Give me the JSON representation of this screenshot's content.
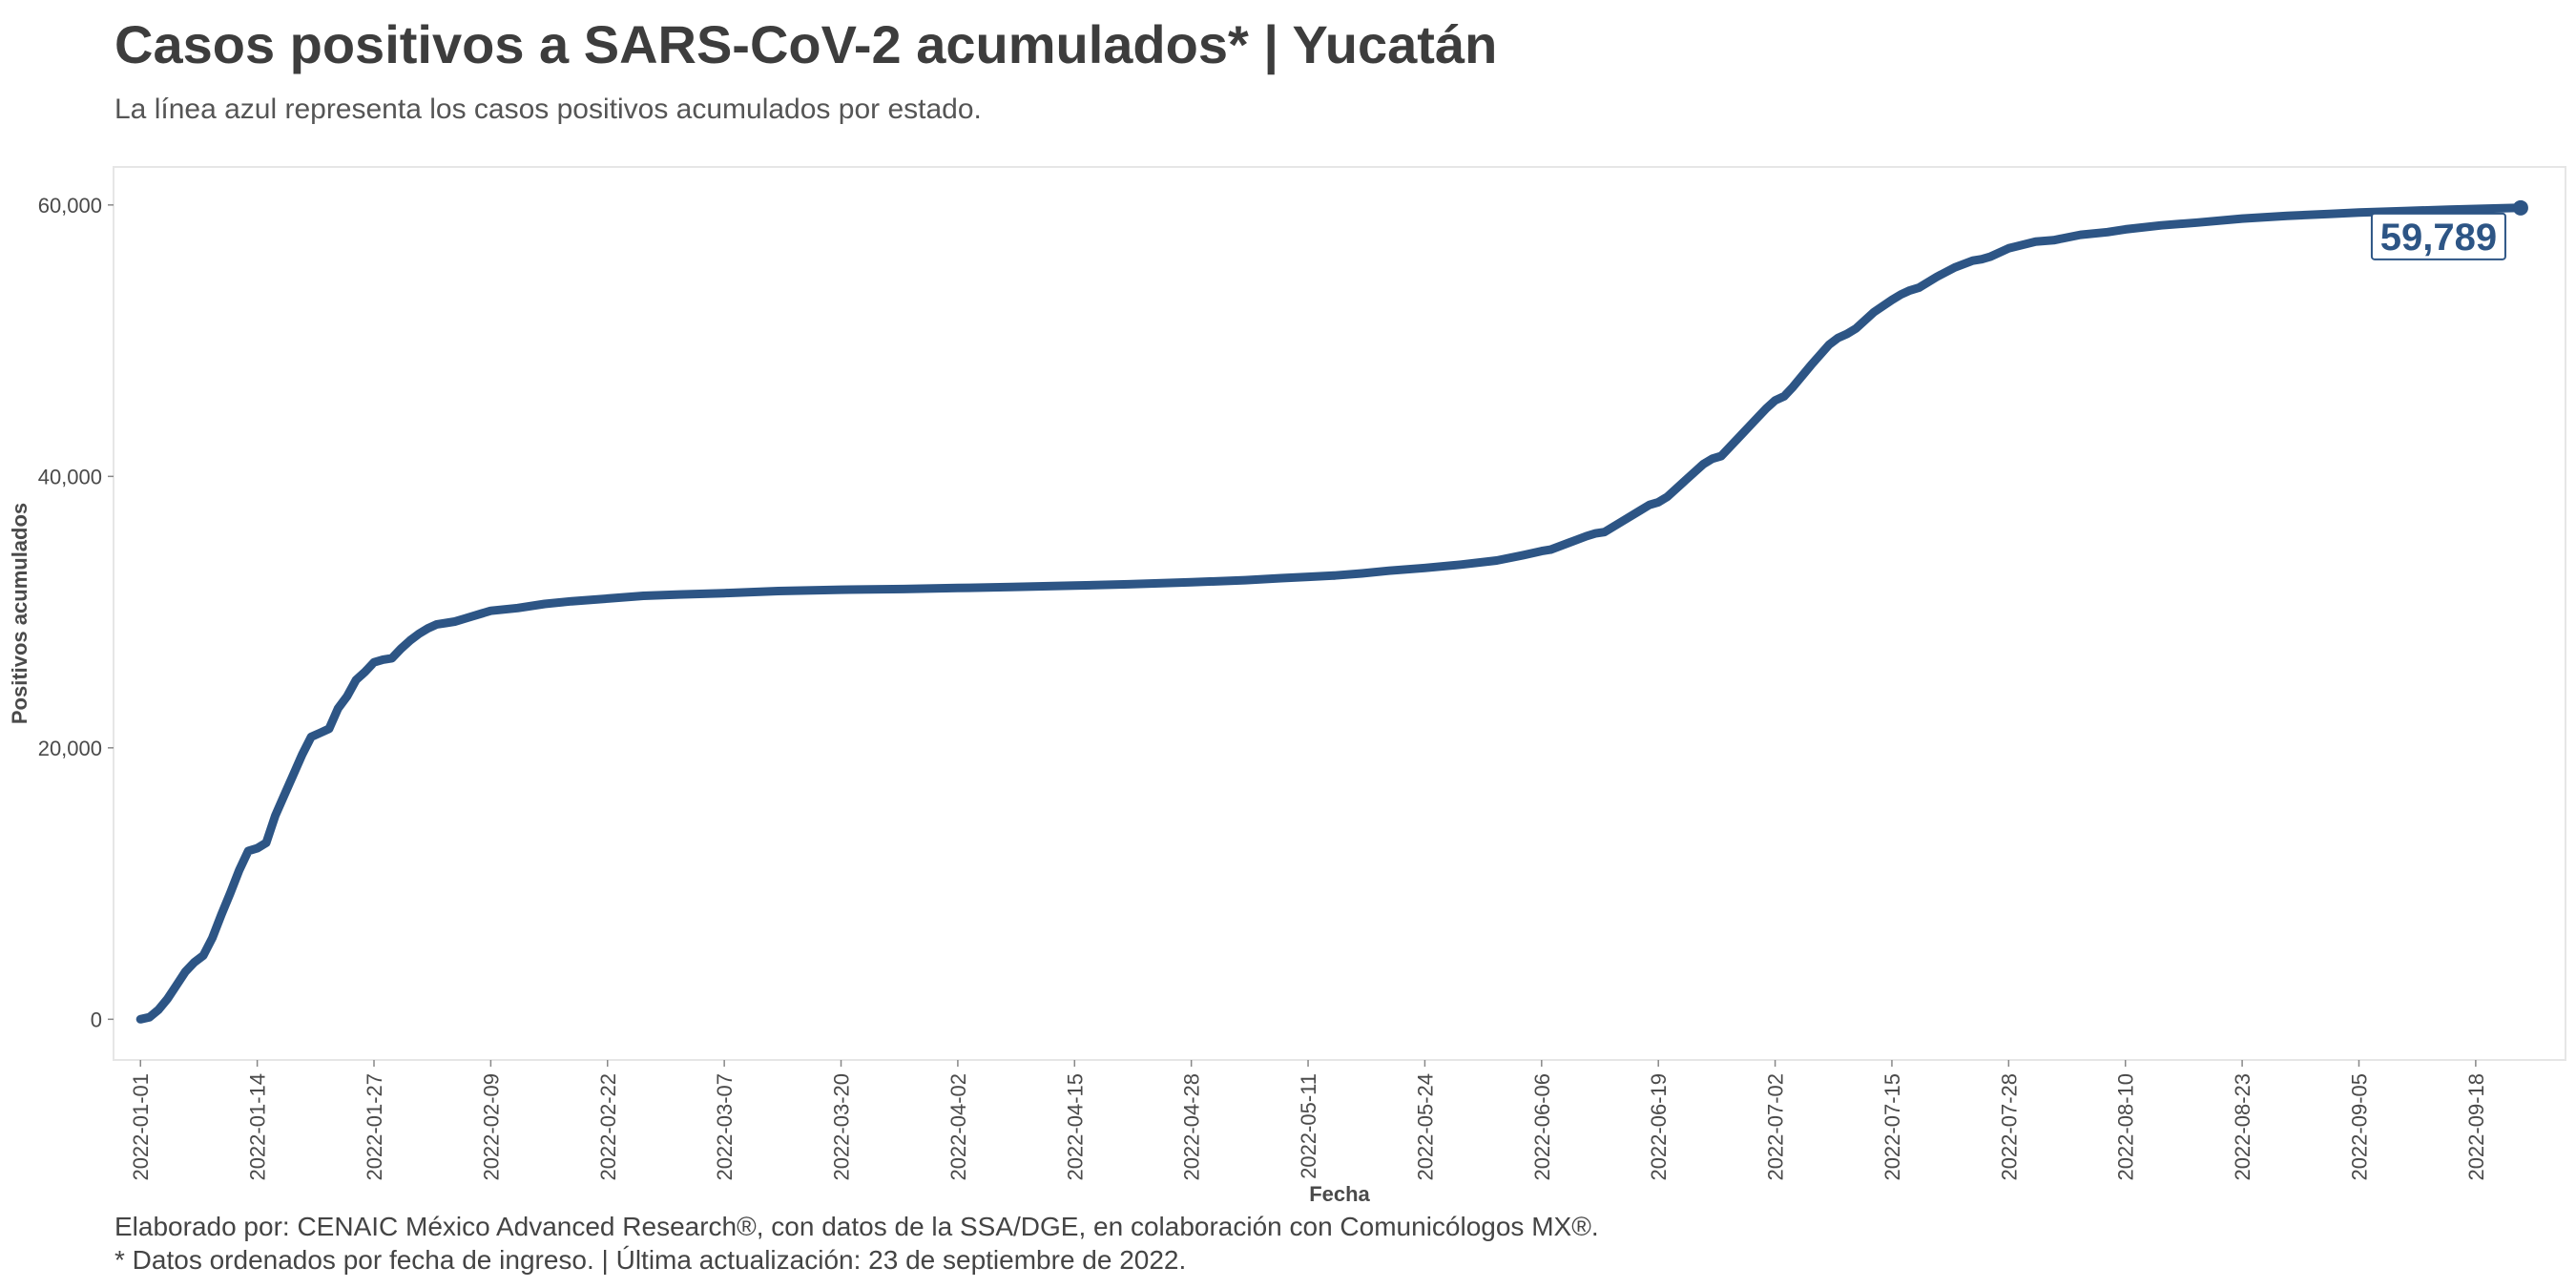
{
  "header": {
    "title": "Casos positivos a SARS-CoV-2 acumulados* | Yucatán",
    "subtitle": "La línea azul representa los casos positivos acumulados por estado."
  },
  "footer": {
    "credit": "Elaborado por: CENAIC México Advanced Research®, con datos de la SSA/DGE, en colaboración con Comunicólogos MX®.",
    "note": "* Datos ordenados por fecha de ingreso. | Última actualización: 23 de septiembre de 2022."
  },
  "colors": {
    "line": "#2d5585",
    "panel_border": "#e6e6e6",
    "text": "#3d3d3d"
  },
  "chart_data": {
    "type": "line",
    "title": "Casos positivos a SARS-CoV-2 acumulados* | Yucatán",
    "xlabel": "Fecha",
    "ylabel": "Positivos acumulados",
    "ylim": [
      -3000,
      62800
    ],
    "xlim": [
      "2021-12-29",
      "2022-09-28"
    ],
    "grid": false,
    "y_ticks": [
      {
        "value": 0,
        "label": "0"
      },
      {
        "value": 20000,
        "label": "20,000"
      },
      {
        "value": 40000,
        "label": "40,000"
      },
      {
        "value": 60000,
        "label": "60,000"
      }
    ],
    "x_ticks": [
      "2022-01-01",
      "2022-01-14",
      "2022-01-27",
      "2022-02-09",
      "2022-02-22",
      "2022-03-07",
      "2022-03-20",
      "2022-04-02",
      "2022-04-15",
      "2022-04-28",
      "2022-05-11",
      "2022-05-24",
      "2022-06-06",
      "2022-06-19",
      "2022-07-02",
      "2022-07-15",
      "2022-07-28",
      "2022-08-10",
      "2022-08-23",
      "2022-09-05",
      "2022-09-18"
    ],
    "end_label": "59,789",
    "series": [
      {
        "values": [
          [
            "2022-01-01",
            0
          ],
          [
            "2022-01-02",
            150
          ],
          [
            "2022-01-03",
            700
          ],
          [
            "2022-01-04",
            1500
          ],
          [
            "2022-01-05",
            2500
          ],
          [
            "2022-01-06",
            3500
          ],
          [
            "2022-01-07",
            4200
          ],
          [
            "2022-01-08",
            4700
          ],
          [
            "2022-01-09",
            6000
          ],
          [
            "2022-01-10",
            7700
          ],
          [
            "2022-01-11",
            9300
          ],
          [
            "2022-01-12",
            11000
          ],
          [
            "2022-01-13",
            12400
          ],
          [
            "2022-01-14",
            12600
          ],
          [
            "2022-01-15",
            13000
          ],
          [
            "2022-01-16",
            15000
          ],
          [
            "2022-01-17",
            16500
          ],
          [
            "2022-01-18",
            18000
          ],
          [
            "2022-01-19",
            19500
          ],
          [
            "2022-01-20",
            20800
          ],
          [
            "2022-01-21",
            21100
          ],
          [
            "2022-01-22",
            21400
          ],
          [
            "2022-01-23",
            22900
          ],
          [
            "2022-01-24",
            23800
          ],
          [
            "2022-01-25",
            25000
          ],
          [
            "2022-01-26",
            25600
          ],
          [
            "2022-01-27",
            26300
          ],
          [
            "2022-01-28",
            26500
          ],
          [
            "2022-01-29",
            26600
          ],
          [
            "2022-01-30",
            27300
          ],
          [
            "2022-01-31",
            27900
          ],
          [
            "2022-02-01",
            28400
          ],
          [
            "2022-02-02",
            28800
          ],
          [
            "2022-02-03",
            29100
          ],
          [
            "2022-02-04",
            29200
          ],
          [
            "2022-02-05",
            29300
          ],
          [
            "2022-02-06",
            29500
          ],
          [
            "2022-02-07",
            29700
          ],
          [
            "2022-02-08",
            29900
          ],
          [
            "2022-02-09",
            30100
          ],
          [
            "2022-02-12",
            30300
          ],
          [
            "2022-02-15",
            30600
          ],
          [
            "2022-02-18",
            30800
          ],
          [
            "2022-02-22",
            31000
          ],
          [
            "2022-02-26",
            31200
          ],
          [
            "2022-03-02",
            31300
          ],
          [
            "2022-03-07",
            31400
          ],
          [
            "2022-03-13",
            31550
          ],
          [
            "2022-03-20",
            31650
          ],
          [
            "2022-03-27",
            31700
          ],
          [
            "2022-04-02",
            31780
          ],
          [
            "2022-04-08",
            31850
          ],
          [
            "2022-04-15",
            31950
          ],
          [
            "2022-04-21",
            32050
          ],
          [
            "2022-04-28",
            32200
          ],
          [
            "2022-05-04",
            32350
          ],
          [
            "2022-05-08",
            32500
          ],
          [
            "2022-05-11",
            32600
          ],
          [
            "2022-05-14",
            32700
          ],
          [
            "2022-05-17",
            32850
          ],
          [
            "2022-05-20",
            33050
          ],
          [
            "2022-05-24",
            33250
          ],
          [
            "2022-05-28",
            33500
          ],
          [
            "2022-06-01",
            33800
          ],
          [
            "2022-06-04",
            34200
          ],
          [
            "2022-06-06",
            34500
          ],
          [
            "2022-06-07",
            34600
          ],
          [
            "2022-06-09",
            35100
          ],
          [
            "2022-06-11",
            35600
          ],
          [
            "2022-06-12",
            35800
          ],
          [
            "2022-06-13",
            35900
          ],
          [
            "2022-06-15",
            36700
          ],
          [
            "2022-06-17",
            37500
          ],
          [
            "2022-06-18",
            37900
          ],
          [
            "2022-06-19",
            38100
          ],
          [
            "2022-06-20",
            38500
          ],
          [
            "2022-06-22",
            39700
          ],
          [
            "2022-06-24",
            40900
          ],
          [
            "2022-06-25",
            41300
          ],
          [
            "2022-06-26",
            41500
          ],
          [
            "2022-06-28",
            42900
          ],
          [
            "2022-06-30",
            44300
          ],
          [
            "2022-07-01",
            45000
          ],
          [
            "2022-07-02",
            45600
          ],
          [
            "2022-07-03",
            45900
          ],
          [
            "2022-07-04",
            46600
          ],
          [
            "2022-07-06",
            48200
          ],
          [
            "2022-07-08",
            49700
          ],
          [
            "2022-07-09",
            50200
          ],
          [
            "2022-07-10",
            50500
          ],
          [
            "2022-07-11",
            50900
          ],
          [
            "2022-07-13",
            52100
          ],
          [
            "2022-07-15",
            53000
          ],
          [
            "2022-07-16",
            53400
          ],
          [
            "2022-07-17",
            53700
          ],
          [
            "2022-07-18",
            53900
          ],
          [
            "2022-07-20",
            54700
          ],
          [
            "2022-07-22",
            55400
          ],
          [
            "2022-07-24",
            55900
          ],
          [
            "2022-07-25",
            56000
          ],
          [
            "2022-07-26",
            56200
          ],
          [
            "2022-07-28",
            56800
          ],
          [
            "2022-07-31",
            57300
          ],
          [
            "2022-08-02",
            57400
          ],
          [
            "2022-08-05",
            57800
          ],
          [
            "2022-08-08",
            58000
          ],
          [
            "2022-08-10",
            58200
          ],
          [
            "2022-08-14",
            58500
          ],
          [
            "2022-08-18",
            58700
          ],
          [
            "2022-08-23",
            59000
          ],
          [
            "2022-08-28",
            59200
          ],
          [
            "2022-09-02",
            59350
          ],
          [
            "2022-09-05",
            59450
          ],
          [
            "2022-09-10",
            59550
          ],
          [
            "2022-09-15",
            59650
          ],
          [
            "2022-09-19",
            59720
          ],
          [
            "2022-09-23",
            59789
          ]
        ]
      }
    ]
  }
}
